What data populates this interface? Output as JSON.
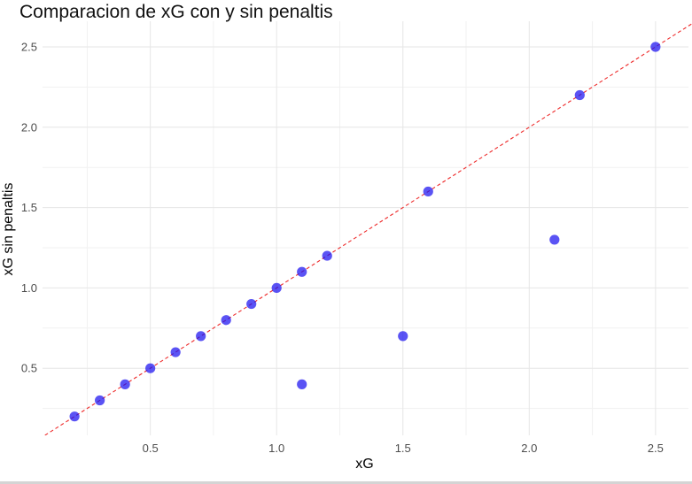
{
  "chart_data": {
    "type": "scatter",
    "title": "Comparacion de xG con y sin penaltis",
    "xlabel": "xG",
    "ylabel": "xG sin penaltis",
    "xlim": [
      0.07,
      2.62
    ],
    "ylim": [
      0.07,
      2.62
    ],
    "x_ticks": [
      0.5,
      1.0,
      1.5,
      2.0,
      2.5
    ],
    "y_ticks": [
      0.5,
      1.0,
      1.5,
      2.0,
      2.5
    ],
    "x_tick_labels": [
      "0.5",
      "1.0",
      "1.5",
      "2.0",
      "2.5"
    ],
    "y_tick_labels": [
      "0.5",
      "1.0",
      "1.5",
      "2.0",
      "2.5"
    ],
    "grid": true,
    "points": [
      {
        "x": 0.2,
        "y": 0.2
      },
      {
        "x": 0.3,
        "y": 0.3
      },
      {
        "x": 0.4,
        "y": 0.4
      },
      {
        "x": 0.5,
        "y": 0.5
      },
      {
        "x": 0.6,
        "y": 0.6
      },
      {
        "x": 0.7,
        "y": 0.7
      },
      {
        "x": 0.8,
        "y": 0.8
      },
      {
        "x": 0.9,
        "y": 0.9
      },
      {
        "x": 1.0,
        "y": 1.0
      },
      {
        "x": 1.1,
        "y": 1.1
      },
      {
        "x": 1.1,
        "y": 0.4
      },
      {
        "x": 1.2,
        "y": 1.2
      },
      {
        "x": 1.5,
        "y": 0.7
      },
      {
        "x": 1.6,
        "y": 1.6
      },
      {
        "x": 2.1,
        "y": 1.3
      },
      {
        "x": 2.2,
        "y": 2.2
      },
      {
        "x": 2.5,
        "y": 2.5
      }
    ],
    "reference_line": {
      "slope": 1,
      "intercept": 0,
      "style": "dashed"
    },
    "colors": {
      "point": "#1a10f0",
      "reference_line": "#ee2a2a",
      "grid_major": "#e6e6e6",
      "grid_minor": "#f1f1f1"
    }
  }
}
